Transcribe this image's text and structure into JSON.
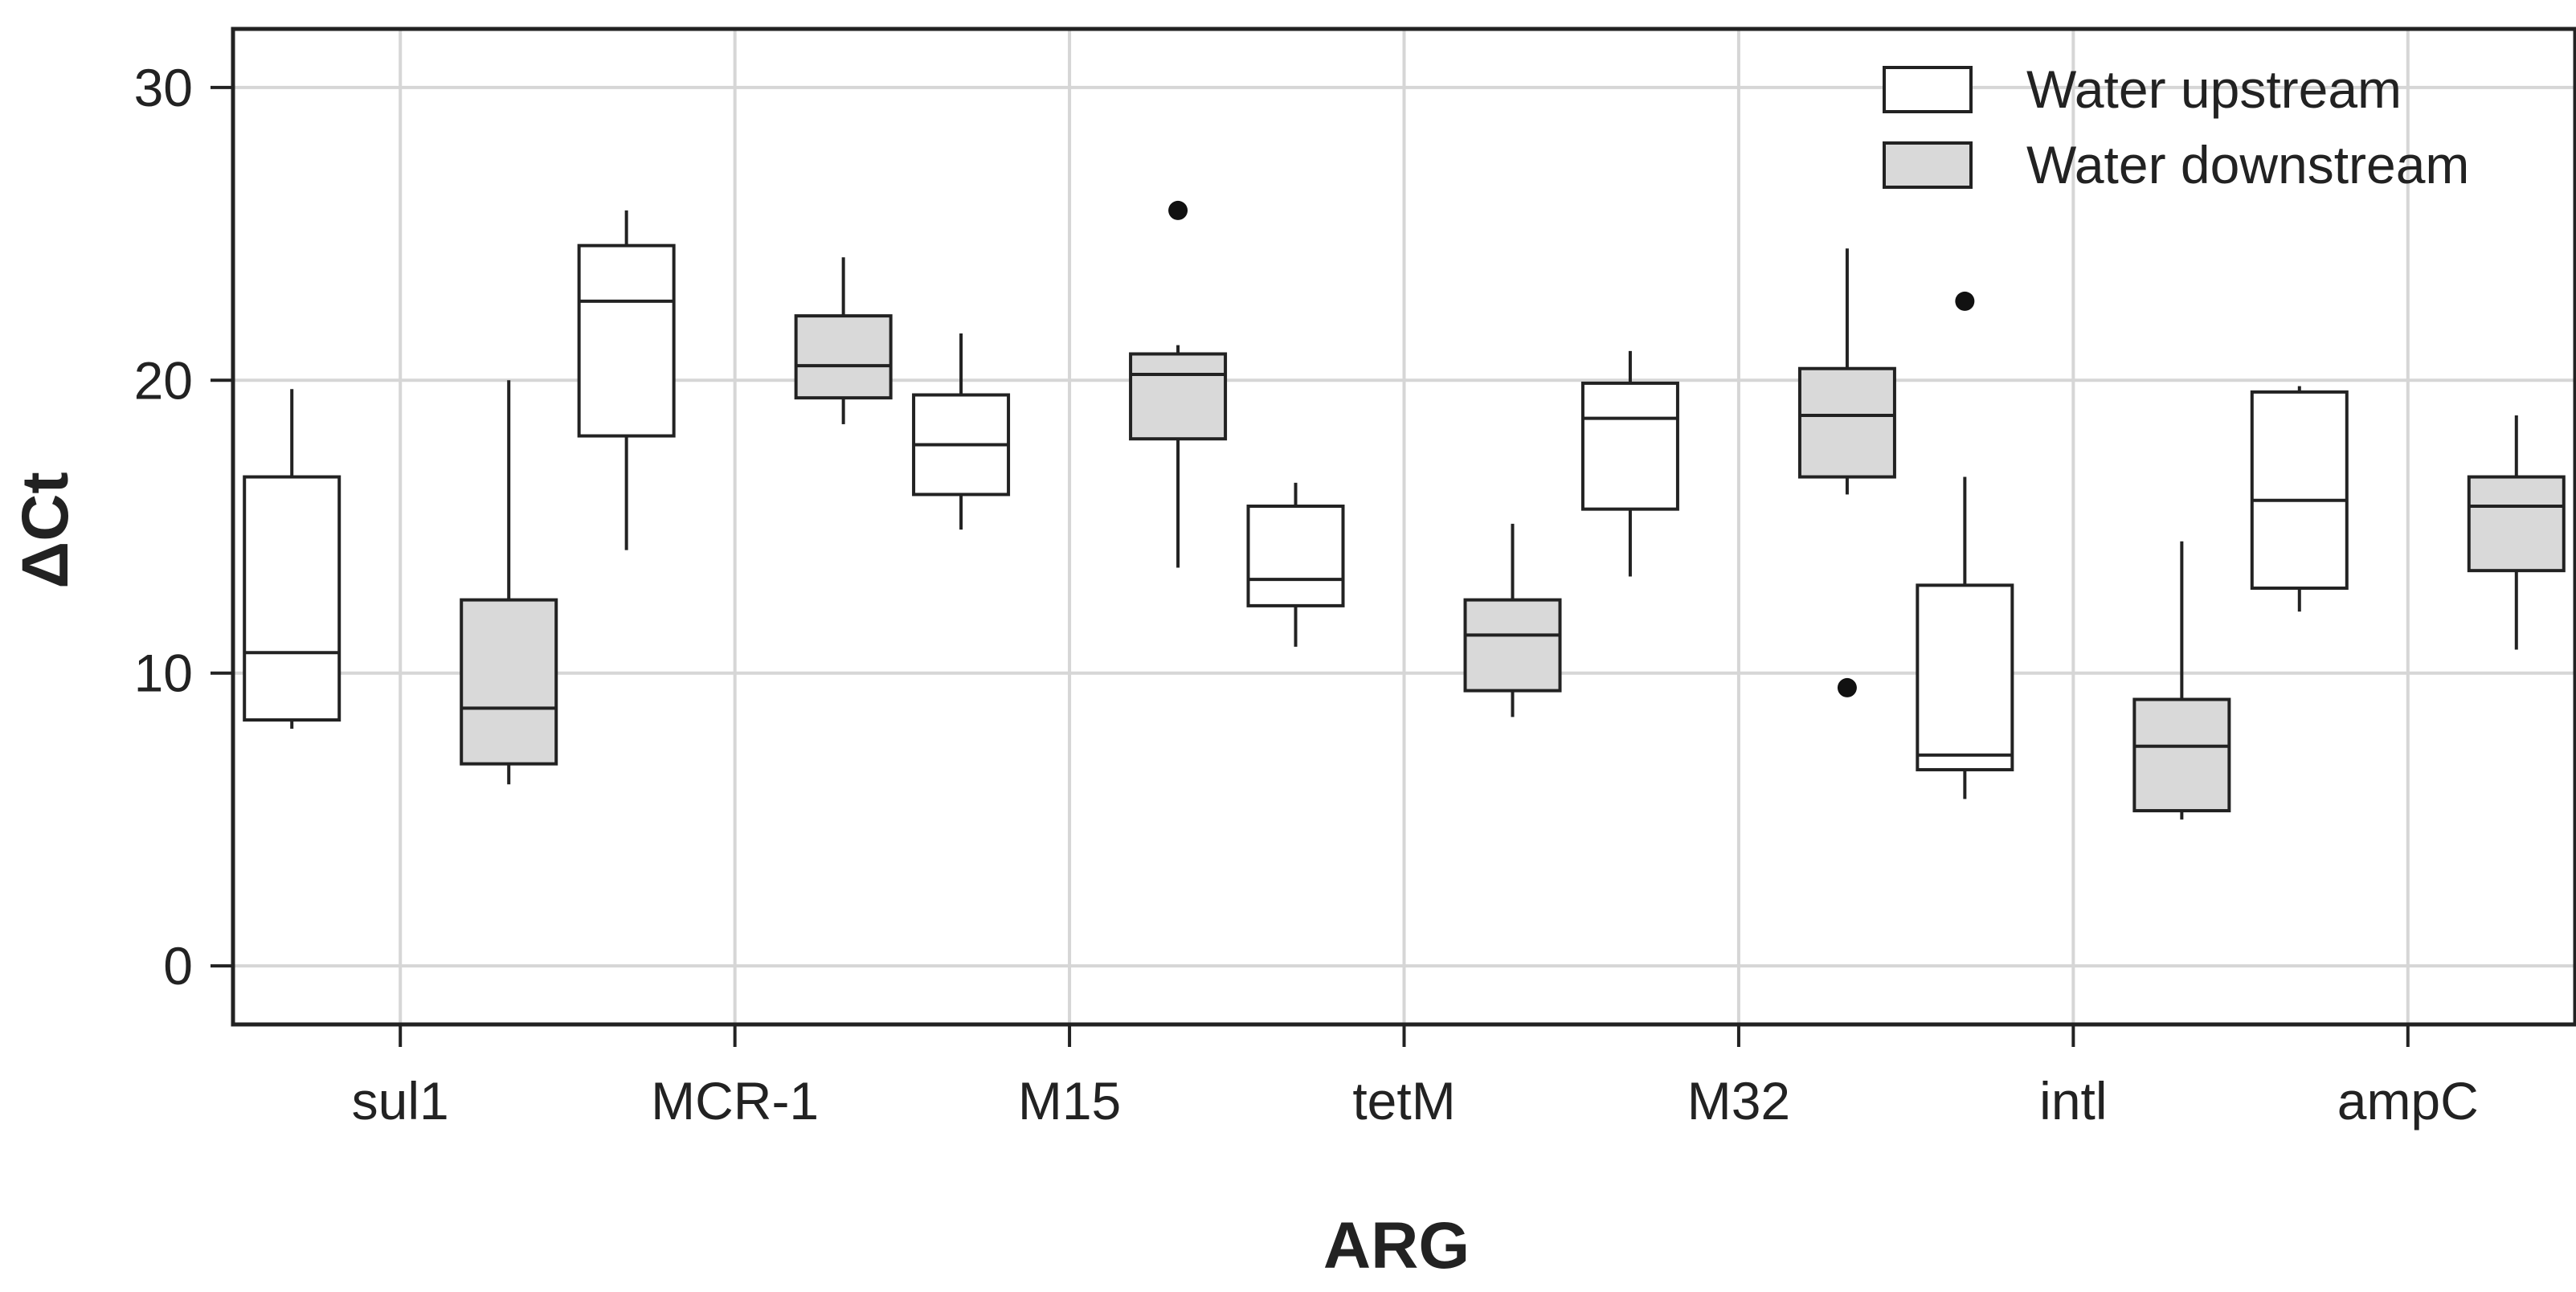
{
  "chart_data": {
    "type": "boxplot",
    "title": "",
    "xlabel": "ARG",
    "ylabel": "ΔCt",
    "categories": [
      "sul1",
      "MCR-1",
      "M15",
      "tetM",
      "M32",
      "intl",
      "ampC"
    ],
    "ylim": [
      -2,
      32
    ],
    "yticks": [
      0,
      10,
      20,
      30
    ],
    "ytick_labels": [
      "0",
      "10",
      "20",
      "30"
    ],
    "grid": true,
    "legend_position": "top-right",
    "series": [
      {
        "name": "Water upstream",
        "fill": "#ffffff",
        "boxes": [
          {
            "whisker_low": 8.1,
            "q1": 8.4,
            "median": 10.7,
            "q3": 16.7,
            "whisker_high": 19.7,
            "outliers": []
          },
          {
            "whisker_low": 14.2,
            "q1": 18.1,
            "median": 22.7,
            "q3": 24.6,
            "whisker_high": 25.8,
            "outliers": []
          },
          {
            "whisker_low": 14.9,
            "q1": 16.1,
            "median": 17.8,
            "q3": 19.5,
            "whisker_high": 21.6,
            "outliers": []
          },
          {
            "whisker_low": 10.9,
            "q1": 12.3,
            "median": 13.2,
            "q3": 15.7,
            "whisker_high": 16.5,
            "outliers": []
          },
          {
            "whisker_low": 13.3,
            "q1": 15.6,
            "median": 18.7,
            "q3": 19.9,
            "whisker_high": 21.0,
            "outliers": []
          },
          {
            "whisker_low": 5.7,
            "q1": 6.7,
            "median": 7.2,
            "q3": 13.0,
            "whisker_high": 16.7,
            "outliers": [
              22.7
            ]
          },
          {
            "whisker_low": 12.1,
            "q1": 12.9,
            "median": 15.9,
            "q3": 19.6,
            "whisker_high": 19.8,
            "outliers": []
          }
        ]
      },
      {
        "name": "Water downstream",
        "fill": "#d9d9d9",
        "boxes": [
          {
            "whisker_low": 6.2,
            "q1": 6.9,
            "median": 8.8,
            "q3": 12.5,
            "whisker_high": 20.0,
            "outliers": []
          },
          {
            "whisker_low": 18.5,
            "q1": 19.4,
            "median": 20.5,
            "q3": 22.2,
            "whisker_high": 24.2,
            "outliers": []
          },
          {
            "whisker_low": 13.6,
            "q1": 18.0,
            "median": 20.2,
            "q3": 20.9,
            "whisker_high": 21.2,
            "outliers": [
              25.8
            ]
          },
          {
            "whisker_low": 8.5,
            "q1": 9.4,
            "median": 11.3,
            "q3": 12.5,
            "whisker_high": 15.1,
            "outliers": []
          },
          {
            "whisker_low": 16.1,
            "q1": 16.7,
            "median": 18.8,
            "q3": 20.4,
            "whisker_high": 24.5,
            "outliers": [
              9.5
            ]
          },
          {
            "whisker_low": 5.0,
            "q1": 5.3,
            "median": 7.5,
            "q3": 9.1,
            "whisker_high": 14.5,
            "outliers": []
          },
          {
            "whisker_low": 10.8,
            "q1": 13.5,
            "median": 15.7,
            "q3": 16.7,
            "whisker_high": 18.8,
            "outliers": []
          }
        ]
      }
    ]
  }
}
